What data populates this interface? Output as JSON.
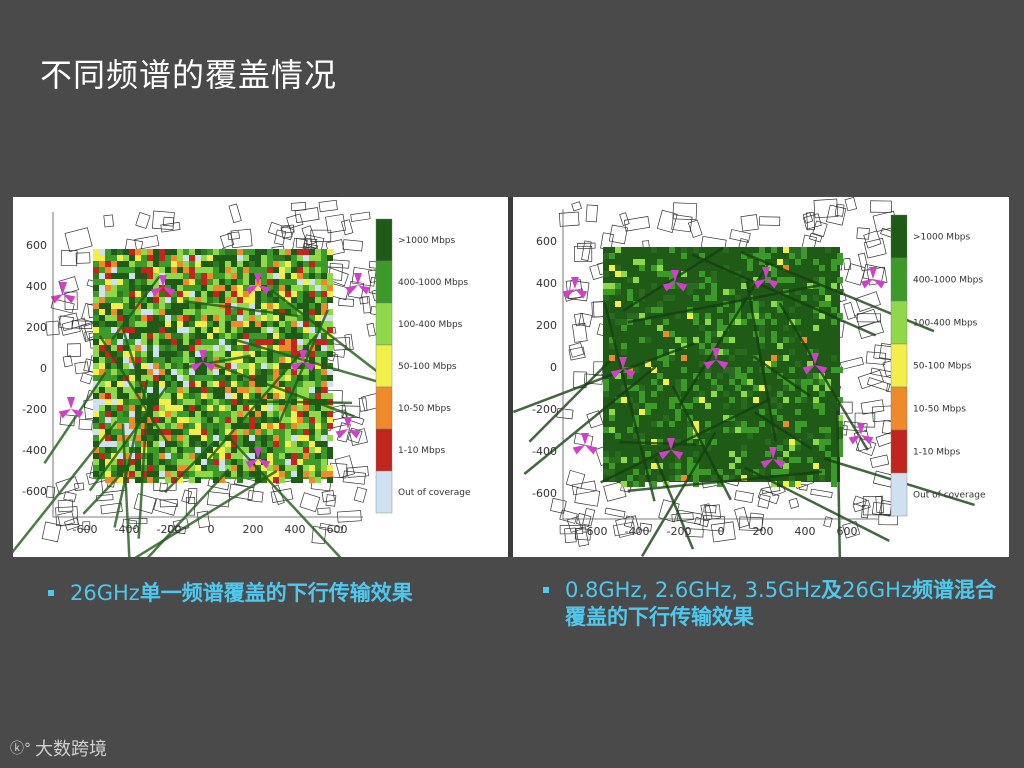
{
  "slide": {
    "title": "不同频谱的覆盖情况"
  },
  "colors": {
    "background": "#4a4a4a",
    "caption": "#4fc8ef",
    "site_marker": "#d040c8"
  },
  "legend": {
    "items": [
      {
        "label": ">1000 Mbps",
        "color": "#1f5a16"
      },
      {
        "label": "400-1000 Mbps",
        "color": "#3c9a28"
      },
      {
        "label": "100-400 Mbps",
        "color": "#8fd84a"
      },
      {
        "label": "50-100 Mbps",
        "color": "#f2ee4a"
      },
      {
        "label": "10-50 Mbps",
        "color": "#ee8a2a"
      },
      {
        "label": "1-10 Mbps",
        "color": "#c0261e"
      },
      {
        "label": "Out of coverage",
        "color": "#cfe0f0"
      }
    ]
  },
  "axes": {
    "x_ticks": [
      "-600",
      "-400",
      "-200",
      "0",
      "200",
      "400",
      "600"
    ],
    "y_ticks": [
      "600",
      "400",
      "200",
      "0",
      "-200",
      "-400",
      "-600"
    ]
  },
  "maps": [
    {
      "name": "26GHz single spectrum",
      "caption_prefix": "26GHz",
      "caption_bold": "单一频谱覆盖的下行传输效果"
    },
    {
      "name": "mixed spectrum",
      "caption_prefix": "0.8GHz, 2.6GHz, 3.5GHz",
      "caption_bold_1": "及",
      "caption_mid": "26GHz",
      "caption_bold_2": "频谱混合覆盖的下行传输效果"
    }
  ],
  "footer": {
    "logo_text": "大数跨境"
  }
}
